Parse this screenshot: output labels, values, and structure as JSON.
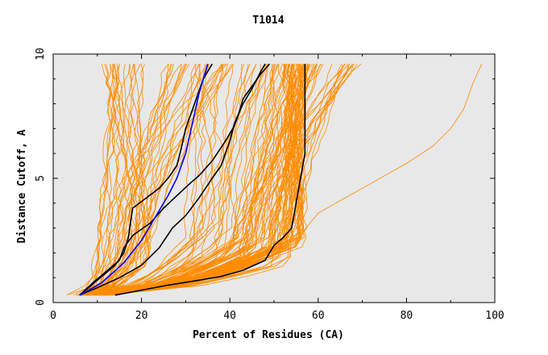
{
  "chart_data": {
    "type": "line",
    "title": "T1014",
    "xlabel": "Percent of Residues (CA)",
    "ylabel": "Distance Cutoff, A",
    "xlim": [
      0,
      100
    ],
    "ylim": [
      0,
      10
    ],
    "xticks": [
      "0",
      "20",
      "40",
      "60",
      "80",
      "100"
    ],
    "yticks": [
      "0",
      "5",
      "10"
    ],
    "colors": {
      "background": "#E8E8E8",
      "bundle": "#FF8C00",
      "highlight_blue": "#0000FF",
      "highlight_black": "#000000"
    },
    "series": [
      {
        "name": "black-1",
        "color": "#000000",
        "x": [
          14,
          20,
          26,
          33,
          38,
          43,
          48,
          50,
          52,
          54,
          55,
          56,
          57,
          57,
          57,
          57
        ],
        "y": [
          0.3,
          0.5,
          0.7,
          0.9,
          1.05,
          1.3,
          1.7,
          2.3,
          2.6,
          3.0,
          4.0,
          5.0,
          6.0,
          7.0,
          8.5,
          9.6
        ]
      },
      {
        "name": "black-2",
        "color": "#000000",
        "x": [
          6,
          10,
          15,
          20,
          24,
          27,
          30,
          33,
          36,
          38,
          40,
          41,
          43,
          45,
          47,
          48
        ],
        "y": [
          0.3,
          0.6,
          1.0,
          1.5,
          2.2,
          3.0,
          3.5,
          4.2,
          5.0,
          5.5,
          6.5,
          7.2,
          8.0,
          8.6,
          9.3,
          9.6
        ]
      },
      {
        "name": "black-3",
        "color": "#000000",
        "x": [
          6,
          9,
          13,
          15,
          16,
          18,
          22,
          25,
          28,
          31,
          33,
          36,
          39,
          41,
          42,
          43,
          45,
          47,
          49
        ],
        "y": [
          0.3,
          0.8,
          1.4,
          1.7,
          2.2,
          2.7,
          3.2,
          3.8,
          4.3,
          4.8,
          5.1,
          5.7,
          6.5,
          7.1,
          7.6,
          8.2,
          8.7,
          9.2,
          9.6
        ]
      },
      {
        "name": "black-4",
        "color": "#000000",
        "x": [
          6,
          10,
          14,
          16,
          17,
          18,
          21,
          24,
          26,
          28,
          29,
          30,
          31,
          32,
          33,
          34,
          36
        ],
        "y": [
          0.3,
          0.9,
          1.5,
          2.0,
          2.6,
          3.8,
          4.2,
          4.6,
          5.0,
          5.5,
          6.2,
          7.0,
          7.5,
          8.0,
          8.5,
          9.0,
          9.6
        ]
      },
      {
        "name": "blue-1",
        "color": "#0000FF",
        "x": [
          6,
          11,
          16,
          20,
          22,
          24,
          26,
          28,
          29,
          30,
          31,
          32,
          33,
          34,
          35
        ],
        "y": [
          0.3,
          0.8,
          1.6,
          2.5,
          3.1,
          3.7,
          4.3,
          5.0,
          5.5,
          6.0,
          6.8,
          7.6,
          8.4,
          9.0,
          9.6
        ]
      }
    ]
  }
}
